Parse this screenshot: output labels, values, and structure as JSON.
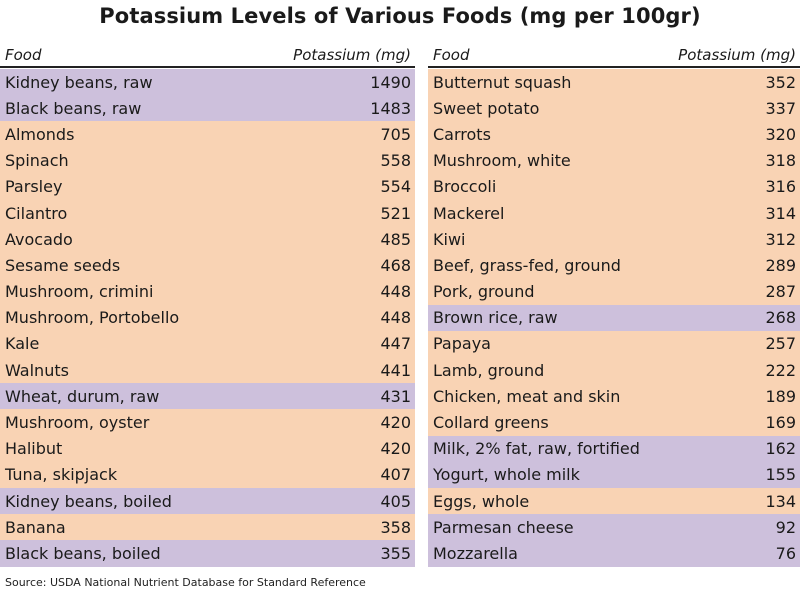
{
  "title": "Potassium Levels of Various Foods (mg per 100gr)",
  "source": "Source: USDA National Nutrient Database for Standard Reference",
  "colors": {
    "plant": "#f9d3b4",
    "legume_grain_dairy": "#cdc0dc"
  },
  "chart_data": {
    "type": "table",
    "title": "Potassium Levels of Various Foods (mg per 100gr)",
    "columns": [
      "Food",
      "Potassium (mg)"
    ],
    "left": {
      "header_food": "Food",
      "header_value": "Potassium (mg)",
      "rows": [
        {
          "food": "Kidney beans, raw",
          "value": "1490",
          "hl": true
        },
        {
          "food": "Black beans, raw",
          "value": "1483",
          "hl": true
        },
        {
          "food": "Almonds",
          "value": "705",
          "hl": false
        },
        {
          "food": "Spinach",
          "value": "558",
          "hl": false
        },
        {
          "food": "Parsley",
          "value": "554",
          "hl": false
        },
        {
          "food": "Cilantro",
          "value": "521",
          "hl": false
        },
        {
          "food": "Avocado",
          "value": "485",
          "hl": false
        },
        {
          "food": "Sesame seeds",
          "value": "468",
          "hl": false
        },
        {
          "food": "Mushroom, crimini",
          "value": "448",
          "hl": false
        },
        {
          "food": "Mushroom, Portobello",
          "value": "448",
          "hl": false
        },
        {
          "food": "Kale",
          "value": "447",
          "hl": false
        },
        {
          "food": "Walnuts",
          "value": "441",
          "hl": false
        },
        {
          "food": "Wheat, durum, raw",
          "value": "431",
          "hl": true
        },
        {
          "food": "Mushroom, oyster",
          "value": "420",
          "hl": false
        },
        {
          "food": "Halibut",
          "value": "420",
          "hl": false
        },
        {
          "food": "Tuna, skipjack",
          "value": "407",
          "hl": false
        },
        {
          "food": "Kidney beans, boiled",
          "value": "405",
          "hl": true
        },
        {
          "food": "Banana",
          "value": "358",
          "hl": false
        },
        {
          "food": "Black beans, boiled",
          "value": "355",
          "hl": true
        }
      ]
    },
    "right": {
      "header_food": "Food",
      "header_value": "Potassium (mg)",
      "rows": [
        {
          "food": "Butternut squash",
          "value": "352",
          "hl": false
        },
        {
          "food": "Sweet potato",
          "value": "337",
          "hl": false
        },
        {
          "food": "Carrots",
          "value": "320",
          "hl": false
        },
        {
          "food": "Mushroom, white",
          "value": "318",
          "hl": false
        },
        {
          "food": "Broccoli",
          "value": "316",
          "hl": false
        },
        {
          "food": "Mackerel",
          "value": "314",
          "hl": false
        },
        {
          "food": "Kiwi",
          "value": "312",
          "hl": false
        },
        {
          "food": "Beef, grass-fed, ground",
          "value": "289",
          "hl": false
        },
        {
          "food": "Pork, ground",
          "value": "287",
          "hl": false
        },
        {
          "food": "Brown rice, raw",
          "value": "268",
          "hl": true
        },
        {
          "food": "Papaya",
          "value": "257",
          "hl": false
        },
        {
          "food": "Lamb, ground",
          "value": "222",
          "hl": false
        },
        {
          "food": "Chicken, meat and skin",
          "value": "189",
          "hl": false
        },
        {
          "food": "Collard greens",
          "value": "169",
          "hl": false
        },
        {
          "food": "Milk, 2% fat, raw, fortified",
          "value": "162",
          "hl": true
        },
        {
          "food": "Yogurt, whole milk",
          "value": "155",
          "hl": true
        },
        {
          "food": "Eggs, whole",
          "value": "134",
          "hl": false
        },
        {
          "food": "Parmesan cheese",
          "value": "92",
          "hl": true
        },
        {
          "food": "Mozzarella",
          "value": "76",
          "hl": true
        }
      ]
    }
  }
}
